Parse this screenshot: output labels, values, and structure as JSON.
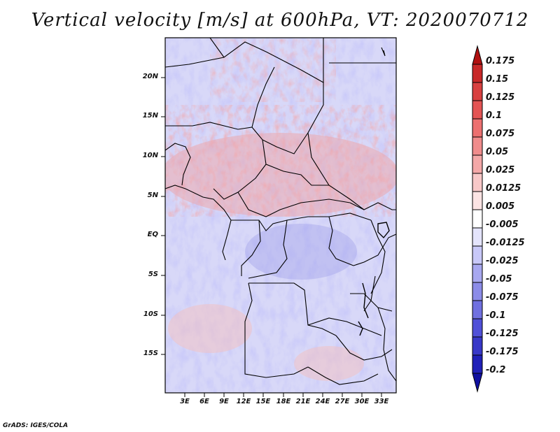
{
  "title": "Vertical velocity [m/s] at 600hPa, VT: 2020070712",
  "map": {
    "lat_labels": [
      "20N",
      "15N",
      "10N",
      "5N",
      "EQ",
      "5S",
      "10S",
      "15S"
    ],
    "lon_labels": [
      "3E",
      "6E",
      "9E",
      "12E",
      "15E",
      "18E",
      "21E",
      "24E",
      "27E",
      "30E",
      "33E"
    ]
  },
  "colorbar": {
    "labels": [
      "0.175",
      "0.15",
      "0.125",
      "0.1",
      "0.075",
      "0.05",
      "0.025",
      "0.0125",
      "0.005",
      "-0.005",
      "-0.0125",
      "-0.025",
      "-0.05",
      "-0.075",
      "-0.1",
      "-0.125",
      "-0.175",
      "-0.2"
    ],
    "colors": [
      "#b01010",
      "#c82828",
      "#d84040",
      "#e45454",
      "#ec7070",
      "#f08c8c",
      "#f4a8a8",
      "#f8c8c8",
      "#fce4e4",
      "#ffffff",
      "#e4e4fc",
      "#c8c8f8",
      "#a8a8f0",
      "#8c8ce8",
      "#7070e0",
      "#5050d8",
      "#3838c8",
      "#2020b8",
      "#1010a0"
    ]
  },
  "credit": "GrADS: IGES/COLA"
}
